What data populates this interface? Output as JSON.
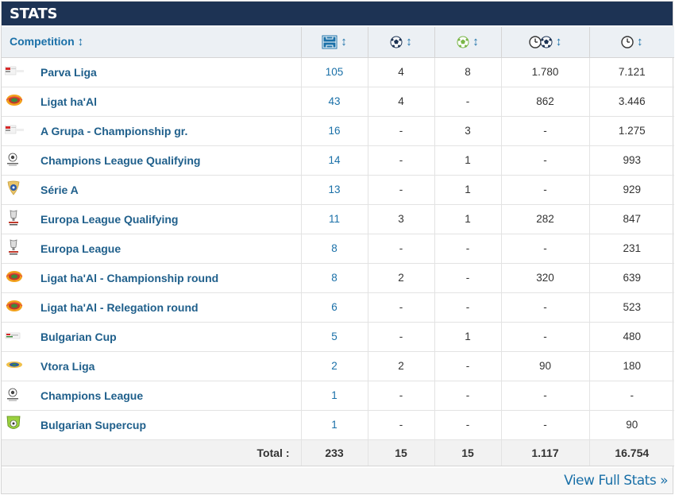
{
  "header": {
    "title": "STATS"
  },
  "columns": {
    "competition": "Competition",
    "sort_glyph": "↕",
    "apps_icon": "pitch-icon",
    "goals_icon": "ball-icon",
    "assists_icon": "assist-ball-icon",
    "minutes_per_goal_icon": "clock-ball-icon",
    "minutes_icon": "clock-icon"
  },
  "rows": [
    {
      "logo": "bulgaria-flag",
      "competition": "Parva Liga",
      "apps": "105",
      "goals": "4",
      "assists": "8",
      "minutes_per_goal": "1.780",
      "minutes": "7.121"
    },
    {
      "logo": "israel-league",
      "competition": "Ligat ha'Al",
      "apps": "43",
      "goals": "4",
      "assists": "-",
      "minutes_per_goal": "862",
      "minutes": "3.446"
    },
    {
      "logo": "bulgaria-flag",
      "competition": "A Grupa - Championship gr.",
      "apps": "16",
      "goals": "-",
      "assists": "3",
      "minutes_per_goal": "-",
      "minutes": "1.275"
    },
    {
      "logo": "champions-league",
      "competition": "Champions League Qualifying",
      "apps": "14",
      "goals": "-",
      "assists": "1",
      "minutes_per_goal": "-",
      "minutes": "993"
    },
    {
      "logo": "serie-a-brazil",
      "competition": "Série A",
      "apps": "13",
      "goals": "-",
      "assists": "1",
      "minutes_per_goal": "-",
      "minutes": "929"
    },
    {
      "logo": "europa-league",
      "competition": "Europa League Qualifying",
      "apps": "11",
      "goals": "3",
      "assists": "1",
      "minutes_per_goal": "282",
      "minutes": "847"
    },
    {
      "logo": "europa-league",
      "competition": "Europa League",
      "apps": "8",
      "goals": "-",
      "assists": "-",
      "minutes_per_goal": "-",
      "minutes": "231"
    },
    {
      "logo": "israel-league",
      "competition": "Ligat ha'Al - Championship round",
      "apps": "8",
      "goals": "2",
      "assists": "-",
      "minutes_per_goal": "320",
      "minutes": "639"
    },
    {
      "logo": "israel-league",
      "competition": "Ligat ha'Al - Relegation round",
      "apps": "6",
      "goals": "-",
      "assists": "-",
      "minutes_per_goal": "-",
      "minutes": "523"
    },
    {
      "logo": "bulgarian-cup",
      "competition": "Bulgarian Cup",
      "apps": "5",
      "goals": "-",
      "assists": "1",
      "minutes_per_goal": "-",
      "minutes": "480"
    },
    {
      "logo": "vtora-liga",
      "competition": "Vtora Liga",
      "apps": "2",
      "goals": "2",
      "assists": "-",
      "minutes_per_goal": "90",
      "minutes": "180"
    },
    {
      "logo": "champions-league",
      "competition": "Champions League",
      "apps": "1",
      "goals": "-",
      "assists": "-",
      "minutes_per_goal": "-",
      "minutes": "-"
    },
    {
      "logo": "bulgarian-supercup",
      "competition": "Bulgarian Supercup",
      "apps": "1",
      "goals": "-",
      "assists": "-",
      "minutes_per_goal": "-",
      "minutes": "90"
    }
  ],
  "totals": {
    "label": "Total :",
    "apps": "233",
    "goals": "15",
    "assists": "15",
    "minutes_per_goal": "1.117",
    "minutes": "16.754"
  },
  "footer": {
    "link": "View Full Stats »"
  },
  "colors": {
    "header_bg": "#1d3354",
    "link": "#1a70a8",
    "name": "#1f5f8b",
    "head_bg": "#ecf0f4"
  }
}
